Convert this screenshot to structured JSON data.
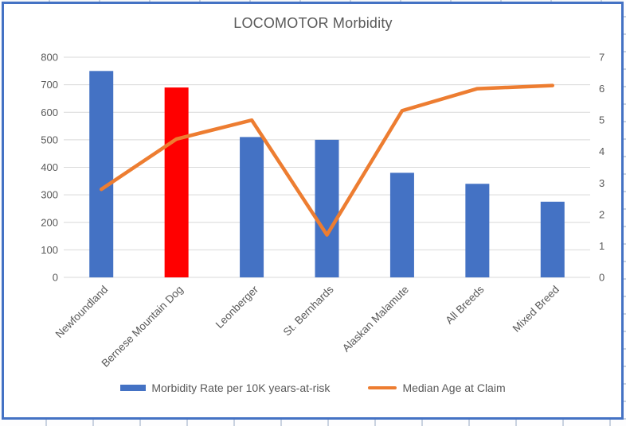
{
  "window": {
    "background_color": "#FFFFFF",
    "frame_border_color": "#4472C4",
    "sheet_gridline_color": "#C9D2E0"
  },
  "chart_data": {
    "type": "bar",
    "subtype": "combo-bar-line",
    "title": "LOCOMOTOR Morbidity",
    "title_color": "#595959",
    "text_color": "#595959",
    "gridline_color": "#D9D9D9",
    "grid": "on",
    "legend_position": "bottom",
    "categories": [
      "Newfoundland",
      "Bernese Mountain Dog",
      "Leonberger",
      "St. Bernhards",
      "Alaskan Malamute",
      "All Breeds",
      "Mixed Breed"
    ],
    "series": [
      {
        "name": "Morbidity Rate per 10K years-at-risk",
        "type": "bar",
        "axis": "left",
        "color": "#4472C4",
        "bar_colors": [
          "#4472C4",
          "#FF0000",
          "#4472C4",
          "#4472C4",
          "#4472C4",
          "#4472C4",
          "#4472C4"
        ],
        "values": [
          750,
          690,
          510,
          500,
          380,
          340,
          275
        ]
      },
      {
        "name": "Median Age at Claim",
        "type": "line",
        "axis": "right",
        "color": "#ED7D31",
        "values": [
          2.8,
          4.4,
          5.0,
          1.35,
          5.3,
          6.0,
          6.1
        ]
      }
    ],
    "left_axis": {
      "min": 0,
      "max": 800,
      "step": 100,
      "tick_labels": [
        "0",
        "100",
        "200",
        "300",
        "400",
        "500",
        "600",
        "700",
        "800"
      ]
    },
    "right_axis": {
      "min": 0,
      "max": 7,
      "step": 1,
      "tick_labels": [
        "0",
        "1",
        "2",
        "3",
        "4",
        "5",
        "6",
        "7"
      ]
    }
  }
}
